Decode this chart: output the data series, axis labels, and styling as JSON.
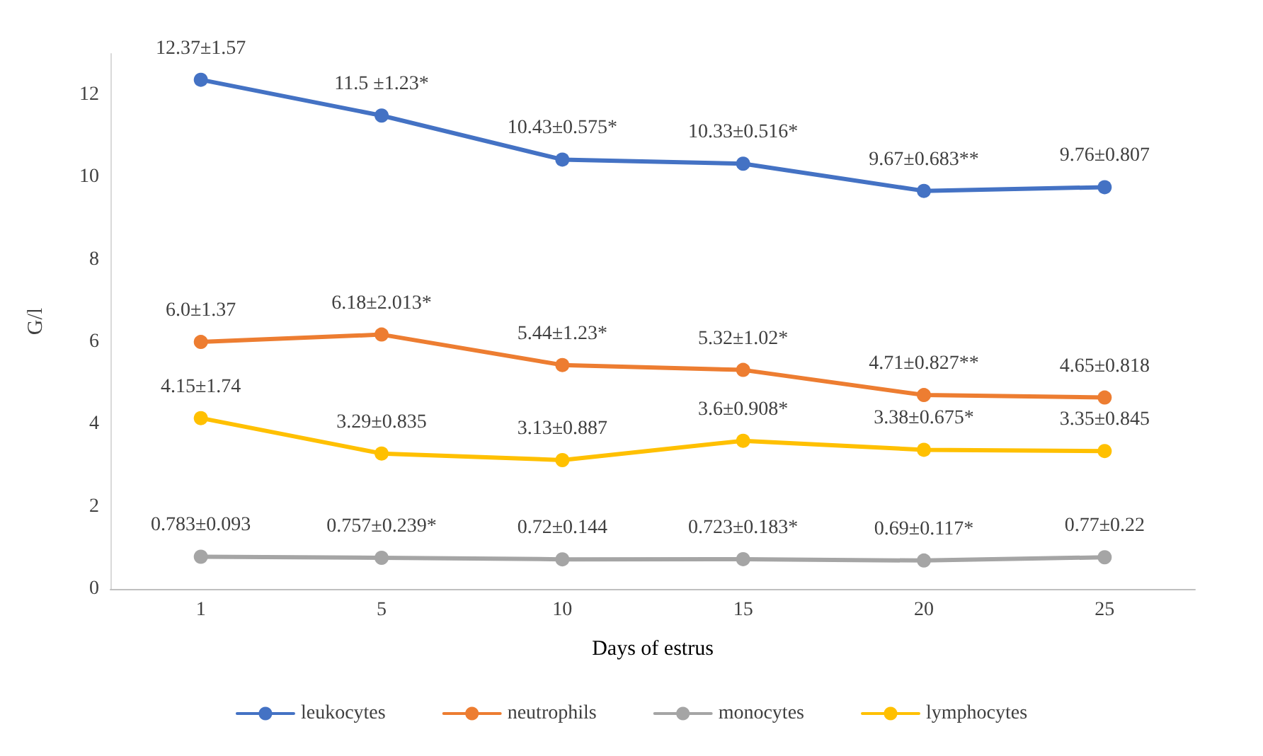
{
  "chart_data": {
    "type": "line",
    "xlabel": "Days of estrus",
    "ylabel": "G/l",
    "categories": [
      "1",
      "5",
      "10",
      "15",
      "20",
      "25"
    ],
    "ylim": [
      0,
      13
    ],
    "yticks": [
      0,
      2,
      4,
      6,
      8,
      10,
      12
    ],
    "grid": false,
    "legend": "bottom",
    "marker": "circle",
    "line_style": "solid",
    "series": [
      {
        "name": "leukocytes",
        "color": "#4472c4",
        "values": [
          12.37,
          11.5,
          10.43,
          10.33,
          9.67,
          9.76
        ],
        "value_labels": [
          "12.37±1.57",
          "11.5 ±1.23*",
          "10.43±0.575*",
          "10.33±0.516*",
          "9.67±0.683**",
          "9.76±0.807"
        ]
      },
      {
        "name": "neutrophils",
        "color": "#ed7d31",
        "values": [
          6.0,
          6.18,
          5.44,
          5.32,
          4.71,
          4.65
        ],
        "value_labels": [
          "6.0±1.37",
          "6.18±2.013*",
          "5.44±1.23*",
          "5.32±1.02*",
          "4.71±0.827**",
          "4.65±0.818"
        ]
      },
      {
        "name": "monocytes",
        "color": "#a5a5a5",
        "values": [
          0.783,
          0.757,
          0.72,
          0.723,
          0.69,
          0.77
        ],
        "value_labels": [
          "0.783±0.093",
          "0.757±0.239*",
          "0.72±0.144",
          "0.723±0.183*",
          "0.69±0.117*",
          "0.77±0.22"
        ]
      },
      {
        "name": "lymphocytes",
        "color": "#ffc000",
        "values": [
          4.15,
          3.29,
          3.13,
          3.6,
          3.38,
          3.35
        ],
        "value_labels": [
          "4.15±1.74",
          "3.29±0.835",
          "3.13±0.887",
          "3.6±0.908*",
          "3.38±0.675*",
          "3.35±0.845"
        ]
      }
    ]
  }
}
